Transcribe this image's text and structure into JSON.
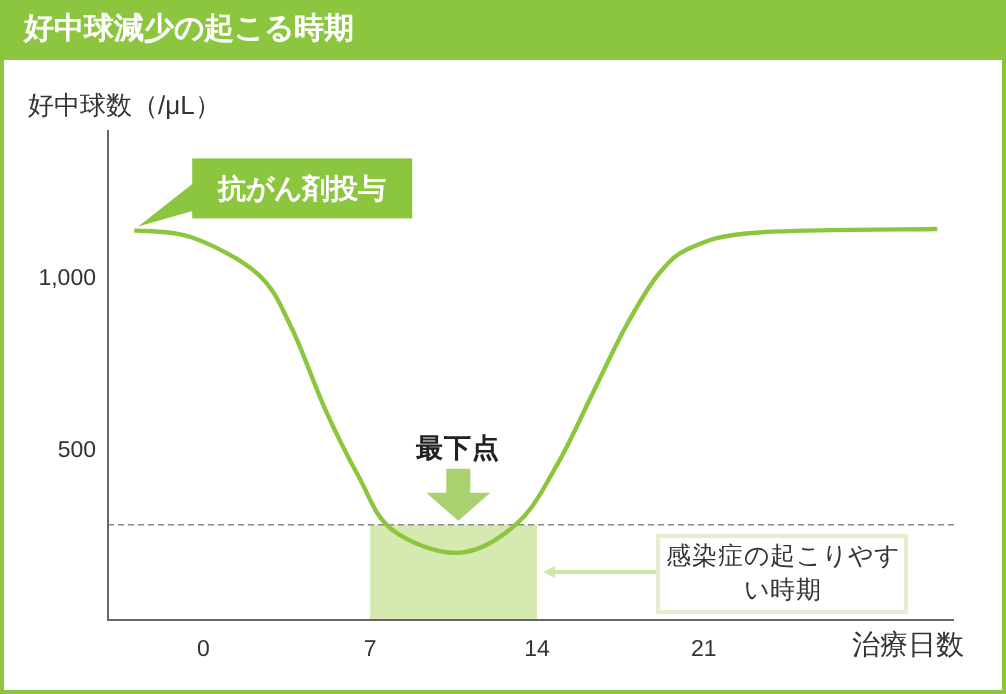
{
  "chart_data": {
    "type": "line",
    "title": "好中球減少の起こる時期",
    "ylabel": "好中球数（/μL）",
    "xlabel": "治療日数",
    "x": [
      -2.9,
      -0.5,
      2.3,
      3.7,
      5.1,
      6.5,
      7.9,
      10.7,
      13.2,
      14.9,
      16.3,
      17.7,
      19.1,
      20.5,
      23.3,
      30.8
    ],
    "values": [
      1137,
      1117,
      1009,
      853,
      617,
      421,
      265,
      196,
      284,
      460,
      656,
      853,
      1009,
      1088,
      1131,
      1141
    ],
    "color": "#8cc63f",
    "xlim": [
      -4,
      31.5
    ],
    "ylim": [
      0,
      1430
    ],
    "xticks": [
      0,
      7,
      14,
      21
    ],
    "yticks": [
      500,
      {
        "value": 1000,
        "label": "1,000"
      }
    ],
    "ref_lines": [
      {
        "axis": "y",
        "value": 278,
        "line_style": "dashed",
        "color": "#888888"
      }
    ],
    "bands": [
      {
        "axis": "x",
        "from": 7,
        "to": 14,
        "label": "感染症の起こりやすい時期",
        "color": "#d6e9b0"
      }
    ],
    "annotations": [
      "抗がん剤投与",
      "最下点"
    ],
    "grid": false,
    "legend": false,
    "marker": "none",
    "line_style": "solid"
  }
}
